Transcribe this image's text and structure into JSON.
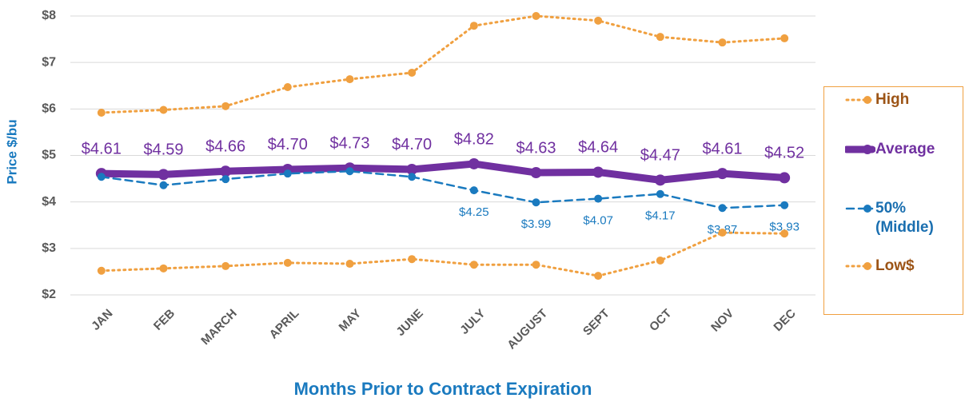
{
  "chart_data": {
    "type": "line",
    "y_label": "Price $/bu",
    "x_label": "Months Prior to Contract Expiration",
    "categories": [
      "JAN",
      "FEB",
      "MARCH",
      "APRIL",
      "MAY",
      "JUNE",
      "JULY",
      "AUGUST",
      "SEPT",
      "OCT",
      "NOV",
      "DEC"
    ],
    "series": [
      {
        "name": "High",
        "color": "#f0a040",
        "label_color": "#9c5416",
        "style": "dotted",
        "width": 3,
        "values": [
          5.92,
          5.98,
          6.06,
          6.47,
          6.64,
          6.78,
          7.79,
          8.0,
          7.9,
          7.55,
          7.43,
          7.52
        ]
      },
      {
        "name": "Average",
        "color": "#7030a0",
        "label_color": "#7030a0",
        "style": "solid",
        "width": 9,
        "values": [
          4.61,
          4.59,
          4.66,
          4.7,
          4.73,
          4.7,
          4.82,
          4.63,
          4.64,
          4.47,
          4.61,
          4.52
        ],
        "value_labels": [
          "$4.61",
          "$4.59",
          "$4.66",
          "$4.70",
          "$4.73",
          "$4.70",
          "$4.82",
          "$4.63",
          "$4.64",
          "$4.47",
          "$4.61",
          "$4.52"
        ]
      },
      {
        "name": "50% (Middle)",
        "color": "#1a7abf",
        "label_color": "#1a6fb0",
        "style": "dashed",
        "width": 2.5,
        "values": [
          4.54,
          4.36,
          4.49,
          4.61,
          4.66,
          4.54,
          4.25,
          3.99,
          4.07,
          4.17,
          3.87,
          3.93
        ],
        "value_labels": [
          null,
          null,
          null,
          null,
          null,
          null,
          "$4.25",
          "$3.99",
          "$4.07",
          "$4.17",
          "$3.87",
          "$3.93"
        ]
      },
      {
        "name": "Low$",
        "color": "#f0a040",
        "label_color": "#9c5416",
        "style": "dotted",
        "width": 3,
        "values": [
          2.52,
          2.57,
          2.62,
          2.69,
          2.67,
          2.77,
          2.65,
          2.65,
          2.41,
          2.74,
          3.34,
          3.32
        ]
      }
    ],
    "ylim": [
      2,
      8
    ],
    "yticks": [
      {
        "value": 2,
        "label": "$2"
      },
      {
        "value": 3,
        "label": "$3"
      },
      {
        "value": 4,
        "label": "$4"
      },
      {
        "value": 5,
        "label": "$5"
      },
      {
        "value": 6,
        "label": "$6"
      },
      {
        "value": 7,
        "label": "$7"
      },
      {
        "value": 8,
        "label": "$8"
      }
    ],
    "grid": true,
    "legend": "right"
  }
}
